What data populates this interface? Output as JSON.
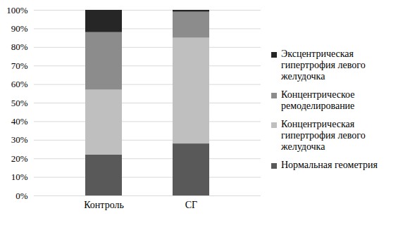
{
  "chart_data": {
    "type": "bar",
    "stacked": true,
    "categories": [
      "Контроль",
      "СГ"
    ],
    "series": [
      {
        "name": "Нормальная геометрия",
        "color": "#595959",
        "values": [
          22,
          28
        ]
      },
      {
        "name": "Концентрическая гипертрофия левого желудочка",
        "color": "#bfbfbf",
        "values": [
          35,
          57
        ]
      },
      {
        "name": "Концентрическое ремоделирование",
        "color": "#8c8c8c",
        "values": [
          31,
          14
        ]
      },
      {
        "name": "Эксцентрическая гипертрофия левого желудочка",
        "color": "#262626",
        "values": [
          12,
          1
        ]
      }
    ],
    "ylim": [
      0,
      100
    ],
    "yticks": [
      {
        "value": 0,
        "label": "0%"
      },
      {
        "value": 10,
        "label": "10%"
      },
      {
        "value": 20,
        "label": "20%"
      },
      {
        "value": 30,
        "label": "30%"
      },
      {
        "value": 40,
        "label": "40%"
      },
      {
        "value": 50,
        "label": "50%"
      },
      {
        "value": 60,
        "label": "60%"
      },
      {
        "value": 70,
        "label": "70%"
      },
      {
        "value": 80,
        "label": "80%"
      },
      {
        "value": 90,
        "label": "90%"
      },
      {
        "value": 100,
        "label": "100%"
      }
    ],
    "grid": true,
    "legend": "right"
  }
}
